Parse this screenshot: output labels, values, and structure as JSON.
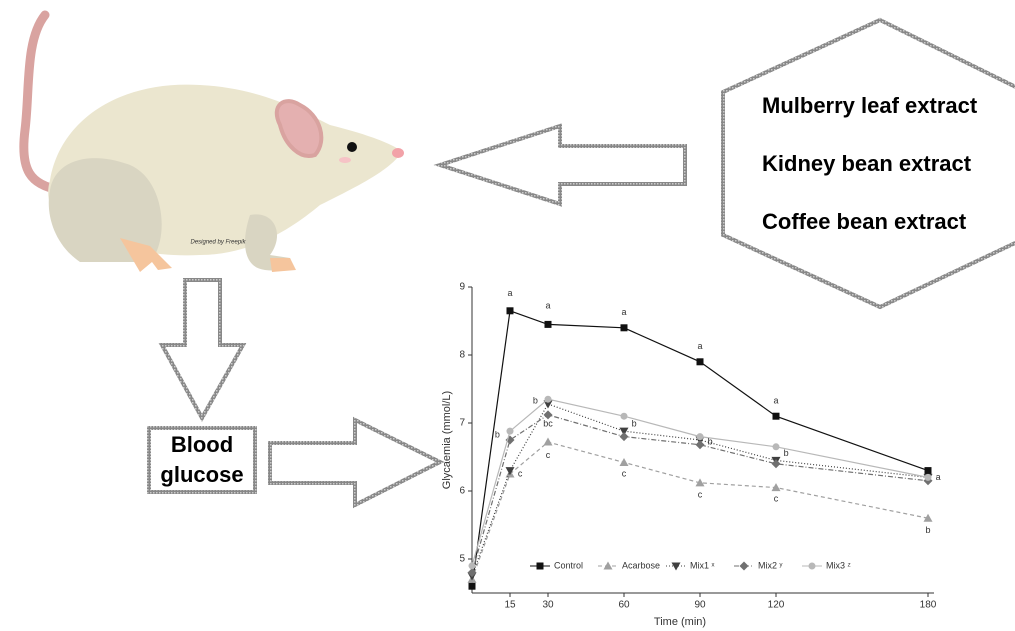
{
  "extracts": [
    "Mulberry leaf extract",
    "Kidney bean extract",
    "Coffee bean extract"
  ],
  "outcome": [
    "Blood",
    "glucose"
  ],
  "credit": "Designed by Freepik",
  "chart_data": {
    "type": "line",
    "x_label": "Time (min)",
    "y_label": "Glycaemia (mmol/L)",
    "x": [
      0,
      15,
      30,
      60,
      90,
      120,
      180
    ],
    "xlim": [
      0,
      180
    ],
    "xticks": [
      15,
      30,
      60,
      90,
      120,
      180
    ],
    "ylim": [
      4.5,
      9
    ],
    "yticks": [
      5,
      6,
      7,
      8,
      9
    ],
    "series": [
      {
        "name": "Control",
        "color": "#111111",
        "marker": "square",
        "dash": "none",
        "values": [
          4.6,
          8.65,
          8.45,
          8.4,
          7.9,
          7.1,
          6.3
        ]
      },
      {
        "name": "Acarbose",
        "color": "#a0a0a0",
        "marker": "triangle-up",
        "dash": "4 3",
        "values": [
          4.7,
          6.25,
          6.72,
          6.42,
          6.12,
          6.05,
          5.6
        ]
      },
      {
        "name": "Mix1 ˣ",
        "color": "#404040",
        "marker": "triangle-down",
        "dash": "1 2",
        "values": [
          4.75,
          6.3,
          7.28,
          6.88,
          6.75,
          6.45,
          6.2
        ]
      },
      {
        "name": "Mix2 ʸ",
        "color": "#707070",
        "marker": "diamond",
        "dash": "5 2 1 2",
        "values": [
          4.8,
          6.75,
          7.12,
          6.8,
          6.68,
          6.4,
          6.15
        ]
      },
      {
        "name": "Mix3 ᶻ",
        "color": "#b8b8b8",
        "marker": "circle",
        "dash": "none",
        "values": [
          4.9,
          6.88,
          7.35,
          7.1,
          6.8,
          6.65,
          6.2
        ]
      }
    ],
    "annotations": [
      {
        "text": "a",
        "x": 15,
        "y": 8.9
      },
      {
        "text": "b",
        "x": 10,
        "y": 6.82
      },
      {
        "text": "c",
        "x": 19,
        "y": 6.25
      },
      {
        "text": "a",
        "x": 30,
        "y": 8.72
      },
      {
        "text": "b",
        "x": 25,
        "y": 7.32
      },
      {
        "text": "bc",
        "x": 30,
        "y": 6.98
      },
      {
        "text": "c",
        "x": 30,
        "y": 6.52
      },
      {
        "text": "a",
        "x": 60,
        "y": 8.62
      },
      {
        "text": "b",
        "x": 64,
        "y": 6.98
      },
      {
        "text": "c",
        "x": 60,
        "y": 6.25
      },
      {
        "text": "a",
        "x": 90,
        "y": 8.12
      },
      {
        "text": "b",
        "x": 94,
        "y": 6.72
      },
      {
        "text": "c",
        "x": 90,
        "y": 5.94
      },
      {
        "text": "a",
        "x": 120,
        "y": 7.32
      },
      {
        "text": "b",
        "x": 124,
        "y": 6.55
      },
      {
        "text": "c",
        "x": 120,
        "y": 5.88
      },
      {
        "text": "a",
        "x": 184,
        "y": 6.2
      },
      {
        "text": "b",
        "x": 180,
        "y": 5.42
      }
    ]
  }
}
